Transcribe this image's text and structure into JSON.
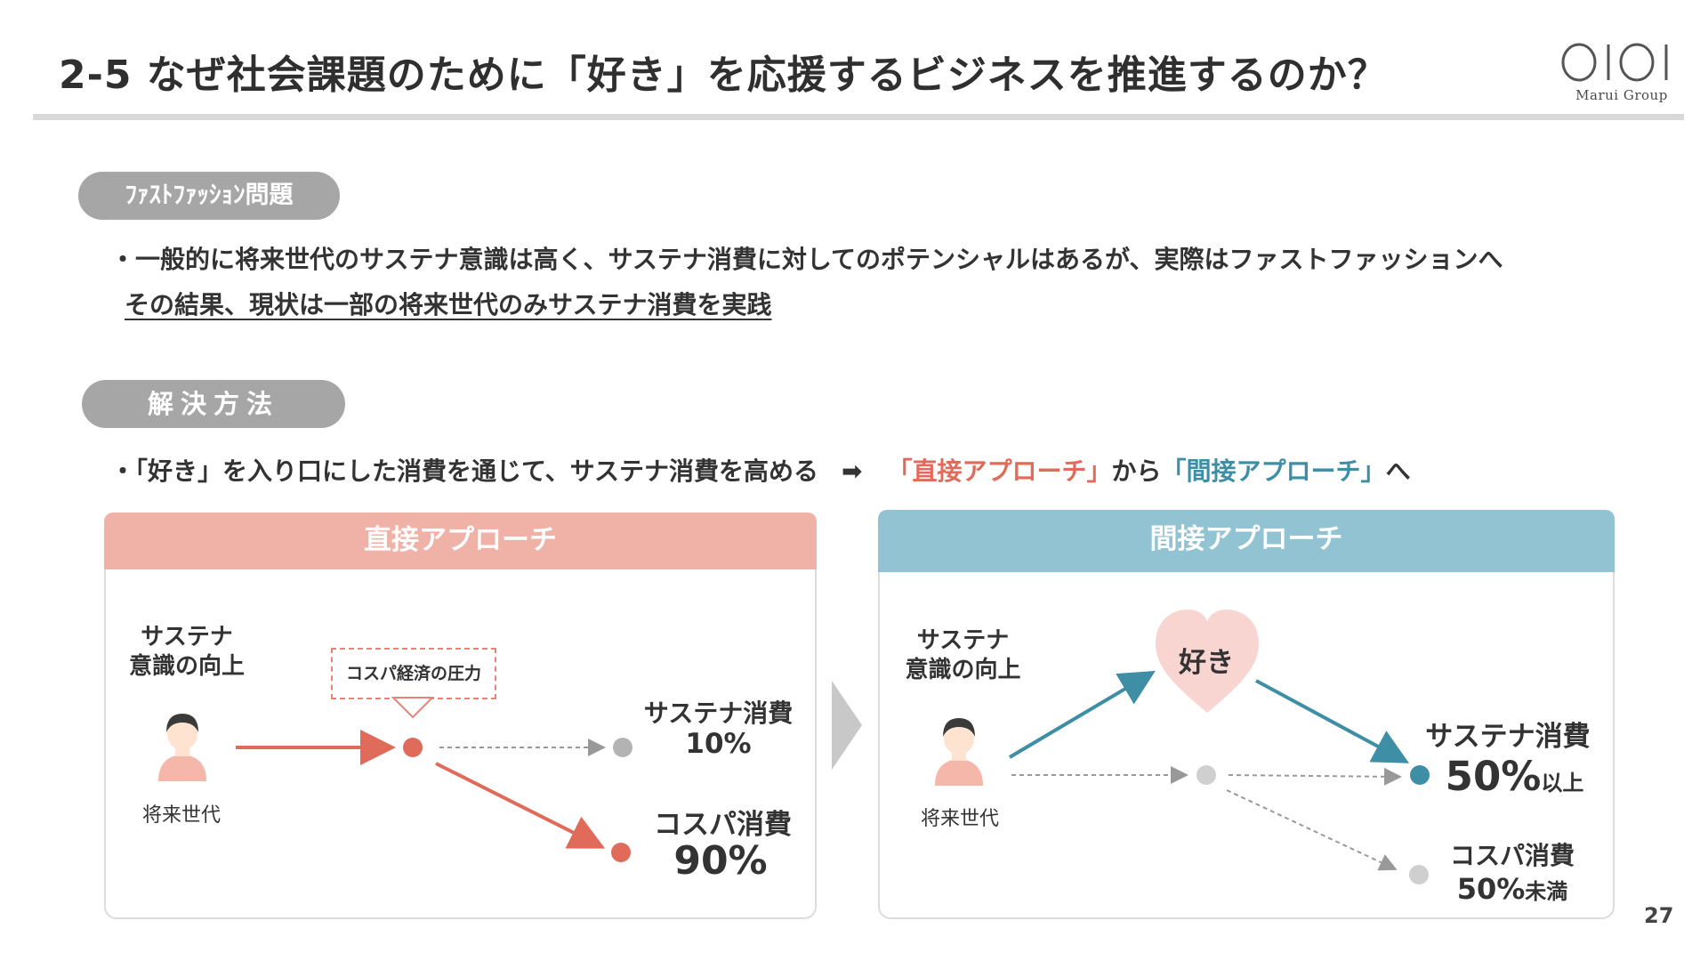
{
  "title": "2-5  なぜ社会課題のために「好き」を応援するビジネスを推進するのか？",
  "logo": {
    "sub": "Marui Group"
  },
  "section1": {
    "pill": "ﾌｧｽﾄﾌｧｯｼｮﾝ問題",
    "bullet": "・一般的に将来世代のサステナ意識は高く、サステナ消費に対してのポテンシャルはあるが、実際はファストファッションへ",
    "result": "その結果、現状は一部の将来世代のみサステナ消費を実践"
  },
  "section2": {
    "pill": "解決方法",
    "bullet_pre": "・「好き」を入り口にした消費を通じて、サステナ消費を高める",
    "arrow": "➡",
    "direct": "「直接アプローチ」",
    "from": "から",
    "indirect": "「間接アプローチ」",
    "to": "へ"
  },
  "left_panel": {
    "header": "直接アプローチ",
    "awareness_line1": "サステナ",
    "awareness_line2": "意識の向上",
    "person_label": "将来世代",
    "pressure": "コスパ経済の圧力",
    "sustain_label": "サステナ消費",
    "sustain_value": "10%",
    "cost_label": "コスパ消費",
    "cost_value": "90%"
  },
  "right_panel": {
    "header": "間接アプローチ",
    "awareness_line1": "サステナ",
    "awareness_line2": "意識の向上",
    "person_label": "将来世代",
    "heart": "好き",
    "sustain_label": "サステナ消費",
    "sustain_value": "50%",
    "sustain_suffix": "以上",
    "cost_label": "コスパ消費",
    "cost_value": "50%",
    "cost_suffix": "未満"
  },
  "page_number": "27",
  "colors": {
    "accent_red": "#e06b5a",
    "accent_blue": "#3e8ea6",
    "pill_gray": "#a6a6a6",
    "header_red": "#f0b1a7",
    "header_blue": "#92c3d2"
  }
}
